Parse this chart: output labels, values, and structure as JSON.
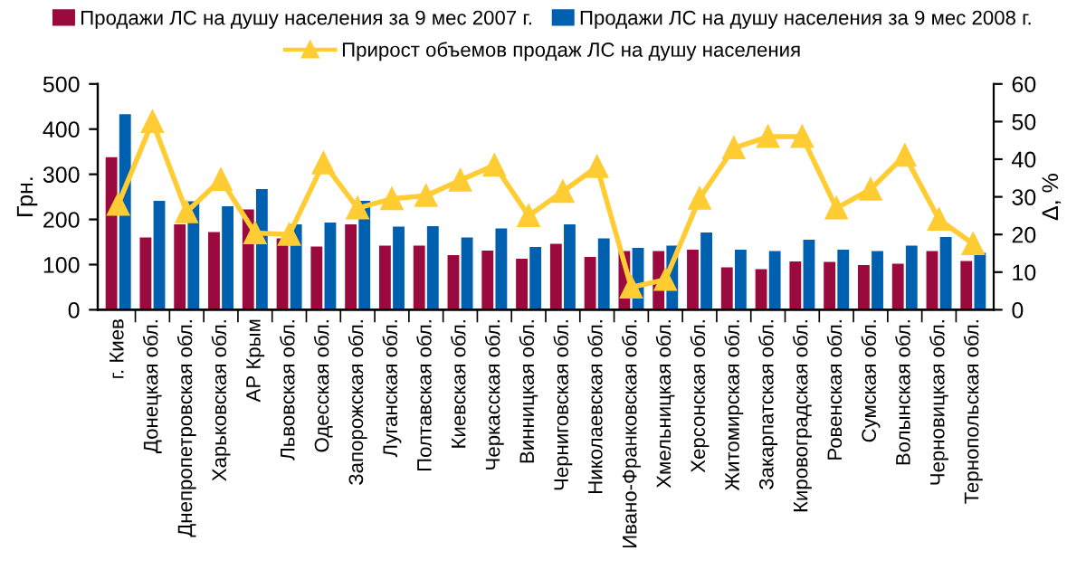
{
  "chart_data": {
    "type": "bar",
    "ylabel": "Грн.",
    "y2label": "Δ, %",
    "categories": [
      "г. Киев",
      "Донецкая обл.",
      "Днепропетровская обл.",
      "Харьковская обл.",
      "АР Крым",
      "Львовская обл.",
      "Одесская обл.",
      "Запорожская обл.",
      "Луганская обл.",
      "Полтавская обл.",
      "Киевская обл.",
      "Черкасская обл.",
      "Винницкая обл.",
      "Черниговская обл.",
      "Николаевская обл.",
      "Ивано-Франковская обл.",
      "Хмельницкая обл.",
      "Херсонская обл.",
      "Житомирская обл.",
      "Закарпатская обл.",
      "Кировоградская обл.",
      "Ровенская обл.",
      "Сумская обл.",
      "Волынская обл.",
      "Черновицкая обл.",
      "Тернопольская обл."
    ],
    "series": [
      {
        "name": "Продажи ЛС на душу населения за 9 мес 2007 г.",
        "color": "#9b0a3e",
        "values": [
          338,
          160,
          189,
          172,
          222,
          158,
          140,
          189,
          142,
          142,
          121,
          131,
          113,
          146,
          117,
          130,
          130,
          133,
          94,
          90,
          107,
          106,
          99,
          102,
          130,
          108
        ]
      },
      {
        "name": "Продажи ЛС на душу населения за 9 мес 2008 г.",
        "color": "#0060b0",
        "values": [
          433,
          241,
          240,
          229,
          267,
          189,
          193,
          241,
          184,
          185,
          160,
          180,
          139,
          189,
          158,
          137,
          142,
          171,
          133,
          130,
          155,
          133,
          130,
          142,
          161,
          126
        ]
      },
      {
        "name": "Прирост объемов продаж ЛС на душу населения",
        "type": "line",
        "axis": "y2",
        "color": "#ffcc33",
        "marker": "triangle",
        "values": [
          28,
          50,
          26,
          34.6,
          20.4,
          20,
          39,
          27,
          29.5,
          30.3,
          34.4,
          38.4,
          25,
          31.4,
          38,
          6,
          8,
          29.6,
          43,
          46,
          46,
          27,
          32,
          41,
          24,
          17.5
        ]
      }
    ],
    "ylim": [
      0,
      500
    ],
    "yticks": [
      0,
      100,
      200,
      300,
      400,
      500
    ],
    "y2lim": [
      0,
      60
    ],
    "y2ticks": [
      0,
      10,
      20,
      30,
      40,
      50,
      60
    ],
    "legend": "top",
    "grid": false
  }
}
